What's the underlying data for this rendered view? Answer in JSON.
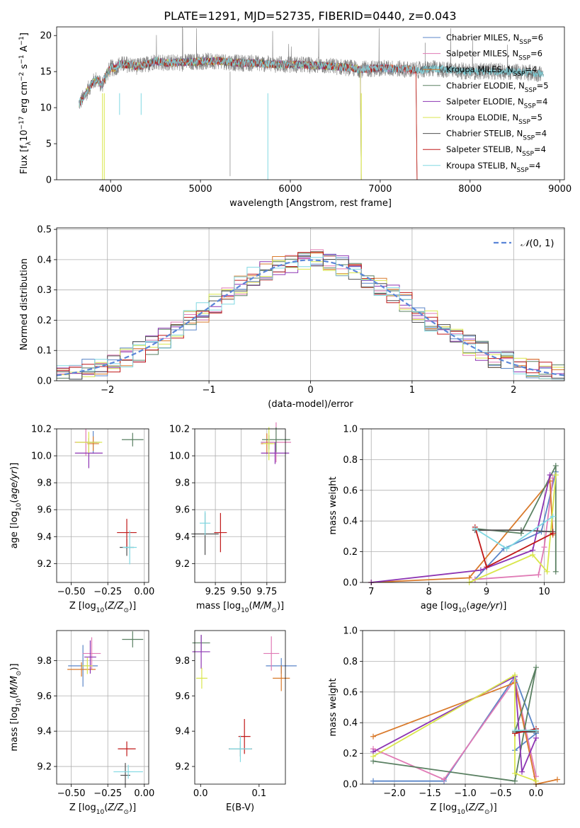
{
  "figure_title": "PLATE=1291, MJD=52735, FIBERID=0440, z=0.043",
  "colors": {
    "Chabrier MILES": "#5b86c8",
    "Salpeter MILES": "#e07ab5",
    "Kroupa MILES": "#d97a2b",
    "Chabrier ELODIE": "#5a8062",
    "Salpeter ELODIE": "#8d35b3",
    "Kroupa ELODIE": "#d9e64c",
    "Chabrier STELIB": "#505050",
    "Salpeter STELIB": "#c01818",
    "Kroupa STELIB": "#80d8e2",
    "normal": "#5b86d8"
  },
  "chart_data": [
    {
      "id": "spectrum",
      "type": "line",
      "title": "PLATE=1291, MJD=52735, FIBERID=0440, z=0.043",
      "xlabel": "wavelength [Angstrom, rest frame]",
      "ylabel": "Flux [f_λ 10^-17 erg cm^-2 s^-1 A^-1]",
      "xlim": [
        3400,
        9050
      ],
      "ylim": [
        0,
        21.2
      ],
      "xticks": [
        4000,
        5000,
        6000,
        7000,
        8000,
        9000
      ],
      "yticks": [
        0,
        5,
        10,
        15,
        20
      ],
      "grid": false,
      "legend_position": "upper-right",
      "legend": [
        {
          "label": "Chabrier MILES",
          "nssp": "6"
        },
        {
          "label": "Salpeter MILES",
          "nssp": "6"
        },
        {
          "label": "Kroupa MILES",
          "nssp": "4"
        },
        {
          "label": "Chabrier ELODIE",
          "nssp": "5"
        },
        {
          "label": "Salpeter ELODIE",
          "nssp": "4"
        },
        {
          "label": "Kroupa ELODIE",
          "nssp": "5"
        },
        {
          "label": "Chabrier STELIB",
          "nssp": "4"
        },
        {
          "label": "Salpeter STELIB",
          "nssp": "4"
        },
        {
          "label": "Kroupa STELIB",
          "nssp": "4"
        }
      ],
      "data_curve": {
        "x": [
          3650,
          3700,
          3750,
          3800,
          3850,
          3900,
          3950,
          4000,
          4050,
          4100,
          4200,
          4300,
          4400,
          4500,
          4600,
          4800,
          5000,
          5200,
          5400,
          5600,
          5800,
          6000,
          6200,
          6400,
          6600,
          6800,
          7000,
          7200,
          7400,
          7600,
          7800,
          8000,
          8200,
          8400,
          8600,
          8800
        ],
        "y": [
          10.5,
          11.5,
          12.5,
          13.5,
          14.0,
          13.0,
          14.5,
          15.5,
          15.5,
          16.0,
          16.0,
          15.7,
          16.0,
          16.5,
          16.2,
          16.3,
          16.4,
          16.5,
          16.2,
          16.2,
          16.0,
          16.0,
          15.9,
          15.8,
          15.6,
          15.3,
          15.5,
          15.4,
          15.2,
          15.4,
          15.2,
          15.0,
          15.1,
          15.0,
          14.9,
          14.7
        ]
      },
      "model_curve": {
        "x": [
          3650,
          3700,
          3750,
          3800,
          3850,
          3900,
          3950,
          4000,
          4050,
          4100,
          4200,
          4300,
          4400,
          4500,
          4600,
          4800,
          5000,
          5200,
          5400,
          5600,
          5800,
          6000,
          6200,
          6400,
          6600,
          6800,
          7000,
          7200,
          7400,
          7420
        ],
        "y": [
          10.0,
          11.0,
          12.0,
          13.0,
          13.5,
          12.5,
          14.2,
          15.5,
          15.6,
          15.8,
          16.1,
          15.6,
          16.0,
          16.4,
          16.2,
          16.3,
          16.3,
          16.4,
          16.1,
          16.1,
          16.0,
          15.9,
          15.8,
          15.7,
          15.5,
          15.3,
          15.4,
          15.3,
          15.2,
          0.0
        ]
      }
    },
    {
      "id": "residuals",
      "type": "line",
      "xlabel": "(data-model)/error",
      "ylabel": "Normed distribution",
      "xlim": [
        -2.5,
        2.5
      ],
      "ylim": [
        0,
        0.505
      ],
      "xticks": [
        -2,
        -1,
        0,
        1,
        2
      ],
      "yticks": [
        0.0,
        0.1,
        0.2,
        0.3,
        0.4,
        0.5
      ],
      "grid": true,
      "legend_position": "upper-right",
      "series": [
        {
          "name": "N(0,1)",
          "style": "dashed"
        }
      ]
    },
    {
      "id": "age_vs_Z",
      "type": "scatter",
      "xlabel": "Z [log10(Z/Z⊙)]",
      "ylabel": "age [log10(age/yr)]",
      "xlim": [
        -0.6,
        0.03
      ],
      "ylim": [
        9.06,
        10.2
      ],
      "xticks": [
        -0.5,
        -0.25,
        0.0
      ],
      "yticks": [
        9.2,
        9.4,
        9.6,
        9.8,
        10.0,
        10.2
      ],
      "grid": true,
      "points": [
        {
          "model": "Chabrier MILES",
          "x": -0.35,
          "y": 10.1
        },
        {
          "model": "Salpeter MILES",
          "x": -0.4,
          "y": 10.1
        },
        {
          "model": "Kroupa MILES",
          "x": -0.35,
          "y": 10.09
        },
        {
          "model": "Chabrier ELODIE",
          "x": -0.08,
          "y": 10.12
        },
        {
          "model": "Salpeter ELODIE",
          "x": -0.38,
          "y": 10.02
        },
        {
          "model": "Kroupa ELODIE",
          "x": -0.38,
          "y": 10.1
        },
        {
          "model": "Chabrier STELIB",
          "x": -0.12,
          "y": 9.32
        },
        {
          "model": "Salpeter STELIB",
          "x": -0.12,
          "y": 9.43
        },
        {
          "model": "Kroupa STELIB",
          "x": -0.1,
          "y": 9.32
        }
      ]
    },
    {
      "id": "age_vs_mass",
      "type": "scatter",
      "xlabel": "mass [log10(M/M⊙)]",
      "ylabel": "",
      "xlim": [
        9.05,
        9.93
      ],
      "ylim": [
        9.06,
        10.2
      ],
      "xticks": [
        9.25,
        9.5,
        9.75
      ],
      "yticks": [
        9.2,
        9.4,
        9.6,
        9.8,
        10.0,
        10.2
      ],
      "grid": true,
      "points": [
        {
          "model": "Chabrier MILES",
          "x": 9.77,
          "y": 10.1
        },
        {
          "model": "Salpeter MILES",
          "x": 9.84,
          "y": 10.1
        },
        {
          "model": "Kroupa MILES",
          "x": 9.75,
          "y": 10.09
        },
        {
          "model": "Chabrier ELODIE",
          "x": 9.84,
          "y": 10.12
        },
        {
          "model": "Salpeter ELODIE",
          "x": 9.83,
          "y": 10.02
        },
        {
          "model": "Kroupa ELODIE",
          "x": 9.77,
          "y": 10.09
        },
        {
          "model": "Chabrier STELIB",
          "x": 9.15,
          "y": 9.42
        },
        {
          "model": "Salpeter STELIB",
          "x": 9.3,
          "y": 9.43
        },
        {
          "model": "Kroupa STELIB",
          "x": 9.15,
          "y": 9.5
        }
      ]
    },
    {
      "id": "weight_vs_age",
      "type": "line",
      "xlabel": "age [log10(age/yr)]",
      "ylabel": "mass weight",
      "xlim": [
        6.85,
        10.35
      ],
      "ylim": [
        0,
        1.0
      ],
      "xticks": [
        7,
        8,
        9,
        10
      ],
      "yticks": [
        0.0,
        0.2,
        0.4,
        0.6,
        0.8,
        1.0
      ],
      "grid": true,
      "series": [
        {
          "model": "Chabrier MILES",
          "x": [
            8.8,
            9.3,
            9.95,
            10.2
          ],
          "y": [
            0.02,
            0.22,
            0.33,
            0.72
          ]
        },
        {
          "model": "Salpeter MILES",
          "x": [
            8.8,
            9.9,
            10.0,
            10.15
          ],
          "y": [
            0.02,
            0.05,
            0.23,
            0.68
          ]
        },
        {
          "model": "Kroupa MILES",
          "x": [
            7.0,
            8.7,
            10.1,
            10.15
          ],
          "y": [
            0.0,
            0.03,
            0.66,
            0.31
          ]
        },
        {
          "model": "Chabrier ELODIE",
          "x": [
            8.8,
            9.6,
            10.2,
            10.2
          ],
          "y": [
            0.35,
            0.32,
            0.76,
            0.07
          ]
        },
        {
          "model": "Salpeter ELODIE",
          "x": [
            7.0,
            8.9,
            9.8,
            10.1
          ],
          "y": [
            0.0,
            0.08,
            0.21,
            0.7
          ]
        },
        {
          "model": "Kroupa ELODIE",
          "x": [
            8.7,
            9.8,
            10.05,
            10.2
          ],
          "y": [
            0.0,
            0.18,
            0.07,
            0.7
          ]
        },
        {
          "model": "Chabrier STELIB",
          "x": [
            8.8,
            9.6,
            10.15
          ],
          "y": [
            0.34,
            0.34,
            0.33
          ]
        },
        {
          "model": "Salpeter STELIB",
          "x": [
            8.8,
            9.0,
            10.15
          ],
          "y": [
            0.36,
            0.1,
            0.32
          ]
        },
        {
          "model": "Kroupa STELIB",
          "x": [
            8.8,
            9.35,
            10.15
          ],
          "y": [
            0.35,
            0.22,
            0.43
          ]
        }
      ]
    },
    {
      "id": "mass_vs_Z",
      "type": "scatter",
      "xlabel": "Z [log10(Z/Z⊙)]",
      "ylabel": "mass [log10(M/M⊙)]",
      "xlim": [
        -0.6,
        0.03
      ],
      "ylim": [
        9.1,
        9.97
      ],
      "xticks": [
        -0.5,
        -0.25,
        0.0
      ],
      "yticks": [
        9.2,
        9.4,
        9.6,
        9.8
      ],
      "grid": true,
      "points": [
        {
          "model": "Chabrier MILES",
          "x": -0.42,
          "y": 9.77
        },
        {
          "model": "Salpeter MILES",
          "x": -0.36,
          "y": 9.84
        },
        {
          "model": "Kroupa MILES",
          "x": -0.43,
          "y": 9.75
        },
        {
          "model": "Chabrier ELODIE",
          "x": -0.08,
          "y": 9.92
        },
        {
          "model": "Salpeter ELODIE",
          "x": -0.37,
          "y": 9.82
        },
        {
          "model": "Kroupa ELODIE",
          "x": -0.39,
          "y": 9.77
        },
        {
          "model": "Chabrier STELIB",
          "x": -0.13,
          "y": 9.15
        },
        {
          "model": "Salpeter STELIB",
          "x": -0.12,
          "y": 9.3
        },
        {
          "model": "Kroupa STELIB",
          "x": -0.11,
          "y": 9.17
        }
      ]
    },
    {
      "id": "mass_vs_EBV",
      "type": "scatter",
      "xlabel": "E(B-V)",
      "ylabel": "",
      "xlim": [
        -0.01,
        0.145
      ],
      "ylim": [
        9.1,
        9.97
      ],
      "xticks": [
        0.0,
        0.1
      ],
      "yticks": [
        9.2,
        9.4,
        9.6,
        9.8
      ],
      "grid": false,
      "points": [
        {
          "model": "Chabrier MILES",
          "x": 0.138,
          "y": 9.77
        },
        {
          "model": "Salpeter MILES",
          "x": 0.121,
          "y": 9.84
        },
        {
          "model": "Kroupa MILES",
          "x": 0.138,
          "y": 9.7
        },
        {
          "model": "Chabrier ELODIE",
          "x": 0.001,
          "y": 9.9
        },
        {
          "model": "Salpeter ELODIE",
          "x": 0.001,
          "y": 9.85
        },
        {
          "model": "Kroupa ELODIE",
          "x": 0.002,
          "y": 9.7
        },
        {
          "model": "Chabrier STELIB",
          "x": 0.068,
          "y": 9.3
        },
        {
          "model": "Salpeter STELIB",
          "x": 0.075,
          "y": 9.37
        },
        {
          "model": "Kroupa STELIB",
          "x": 0.068,
          "y": 9.3
        }
      ]
    },
    {
      "id": "weight_vs_Z",
      "type": "line",
      "xlabel": "Z [log10(Z/Z⊙)]",
      "ylabel": "mass weight",
      "xlim": [
        -2.45,
        0.4
      ],
      "ylim": [
        0,
        1.0
      ],
      "xticks": [
        -2.0,
        -1.5,
        -1.0,
        -0.5,
        0.0
      ],
      "yticks": [
        0.0,
        0.2,
        0.4,
        0.6,
        0.8,
        1.0
      ],
      "grid": true,
      "series": [
        {
          "model": "Chabrier MILES",
          "x": [
            -2.3,
            -1.3,
            -0.3,
            0.0,
            -0.3
          ],
          "y": [
            0.02,
            0.02,
            0.7,
            0.33,
            0.22
          ]
        },
        {
          "model": "Salpeter MILES",
          "x": [
            -2.3,
            -1.3,
            -0.3,
            0.0
          ],
          "y": [
            0.23,
            0.03,
            0.68,
            0.05
          ]
        },
        {
          "model": "Kroupa MILES",
          "x": [
            -2.3,
            -0.3,
            0.0,
            0.3
          ],
          "y": [
            0.31,
            0.66,
            0.0,
            0.03
          ]
        },
        {
          "model": "Chabrier ELODIE",
          "x": [
            -2.3,
            -0.3,
            0.0,
            -0.3,
            0.0
          ],
          "y": [
            0.15,
            0.02,
            0.76,
            0.34,
            0.35
          ]
        },
        {
          "model": "Salpeter ELODIE",
          "x": [
            -2.3,
            -0.3,
            -0.2,
            0.0
          ],
          "y": [
            0.21,
            0.7,
            0.08,
            0.3
          ]
        },
        {
          "model": "Kroupa ELODIE",
          "x": [
            -2.3,
            -0.3,
            -0.3,
            0.0
          ],
          "y": [
            0.18,
            0.71,
            0.07,
            0.02
          ]
        },
        {
          "model": "Chabrier STELIB",
          "x": [
            -0.3,
            0.0
          ],
          "y": [
            0.34,
            0.34
          ]
        },
        {
          "model": "Salpeter STELIB",
          "x": [
            -0.3,
            0.0
          ],
          "y": [
            0.33,
            0.36
          ]
        },
        {
          "model": "Kroupa STELIB",
          "x": [
            -0.3,
            0.0
          ],
          "y": [
            0.35,
            0.35
          ]
        }
      ]
    }
  ]
}
